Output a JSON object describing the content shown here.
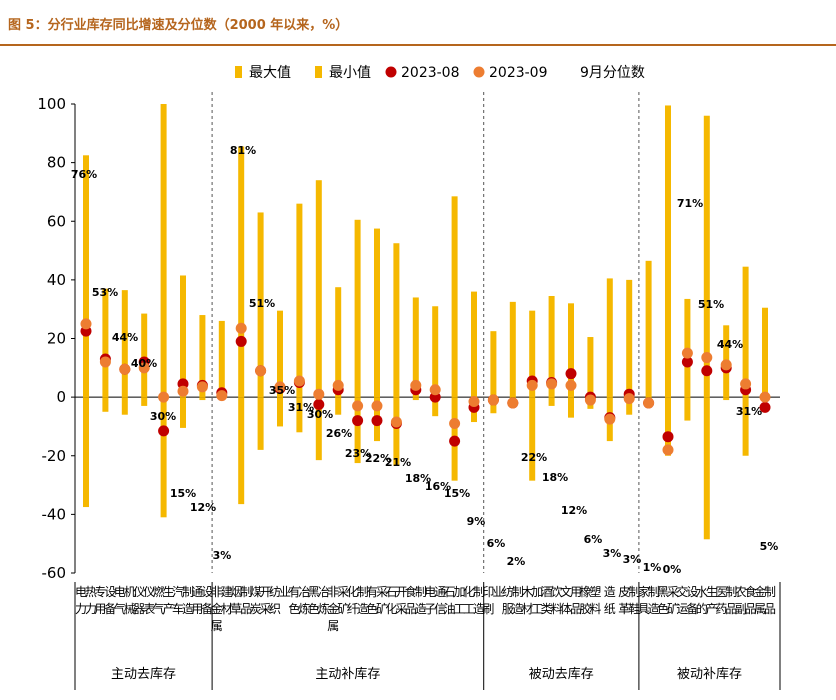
{
  "figure_title": "图 5：分行业库存同比增速及分位数（2000 年以来，%）",
  "chart_data": {
    "type": "bar",
    "title": "图 5：分行业库存同比增速及分位数（2000 年以来，%）",
    "xlabel": "",
    "ylabel": "",
    "ylim": [
      -60,
      100
    ],
    "yticks": [
      -60,
      -40,
      -20,
      0,
      20,
      40,
      60,
      80,
      100
    ],
    "legend_position": "top",
    "legend": [
      {
        "key": "max",
        "label": "最大值",
        "marker": "bar",
        "color": "#F5B800"
      },
      {
        "key": "min",
        "label": "最小值",
        "marker": "bar",
        "color": "#F5B800"
      },
      {
        "key": "v2308",
        "label": "2023-08",
        "marker": "dot",
        "color": "#C00000"
      },
      {
        "key": "v2309",
        "label": "2023-09",
        "marker": "dot",
        "color": "#ED7D31"
      },
      {
        "key": "pct",
        "label": "9月分位数",
        "marker": "none",
        "color": "#000000"
      }
    ],
    "groups": [
      {
        "label": "主动去库存",
        "start": 0,
        "end": 6
      },
      {
        "label": "主动补库存",
        "start": 7,
        "end": 20
      },
      {
        "label": "被动去库存",
        "start": 21,
        "end": 28
      },
      {
        "label": "被动补库存",
        "start": 29,
        "end": 33
      }
    ],
    "categories": [
      "电力热力",
      "专用设备",
      "电气机械",
      "仪器仪表",
      "燃气生产",
      "汽车制造",
      "通用设备",
      "非金属建材",
      "烟草制品",
      "煤炭开采",
      "纺织业",
      "有色冶炼",
      "黑色冶炼",
      "非金属采矿",
      "化纤制造",
      "有色采矿",
      "石化开采",
      "食品制造",
      "电子通信",
      "石油加工",
      "化工制造",
      "印刷业",
      "纺服制造",
      "木材加工",
      "酒类饮料",
      "文体用品",
      "橡胶塑料",
      "造纸",
      "皮革制鞋",
      "家具制造",
      "黑色采矿",
      "交运设备",
      "水的生产",
      "医药制品",
      "农副食品",
      "金属制品"
    ],
    "series": [
      {
        "name": "最大值",
        "values": [
          82.5,
          37,
          36.5,
          28.5,
          100,
          41.5,
          28,
          26,
          85.5,
          63,
          29.5,
          66,
          74,
          37.5,
          60.5,
          57.5,
          52.5,
          34,
          31,
          68.5,
          36,
          22.5,
          32.5,
          29.5,
          34.5,
          32,
          20.5,
          40.5,
          40,
          46.5,
          99.5,
          33.5,
          96,
          24.5,
          44.5,
          30.5
        ]
      },
      {
        "name": "最小值",
        "values": [
          -37.5,
          -5,
          -6,
          -3,
          -41,
          -10.5,
          -1,
          0,
          -36.5,
          -18,
          -10,
          -12,
          -21.5,
          -6,
          -22.5,
          -15,
          -23.5,
          -1,
          -6.5,
          -28.5,
          -8.5,
          -5.5,
          -2,
          -28.5,
          -3,
          -7,
          -4,
          -15,
          -6,
          -3,
          -20,
          -8,
          -48.5,
          -1,
          -20,
          0
        ]
      },
      {
        "name": "2023-08",
        "values": [
          22.5,
          13,
          9.5,
          12,
          -11.5,
          4.5,
          4,
          1.5,
          19,
          9,
          3,
          5,
          -2.5,
          2.5,
          -8,
          -8,
          -9,
          2.5,
          0,
          -15,
          -3.5,
          -1,
          -2,
          5.5,
          5,
          8,
          0,
          -7,
          1,
          -2,
          -13.5,
          12,
          9,
          10,
          2.5,
          -3.5
        ]
      },
      {
        "name": "2023-09",
        "values": [
          25,
          12,
          9.5,
          10,
          0,
          2,
          3.5,
          0.5,
          23.5,
          9,
          3.5,
          5.5,
          1,
          4,
          -3,
          -3,
          -8.5,
          4,
          2.5,
          -9,
          -1.5,
          -1,
          -2,
          4,
          4.5,
          4,
          -1,
          -7.5,
          -0.5,
          -2,
          -18,
          15,
          13.5,
          11,
          4.5,
          0
        ]
      },
      {
        "name": "9月分位数",
        "values": [
          76,
          53,
          44,
          40,
          30,
          15,
          12,
          3,
          81,
          51,
          35,
          31,
          30,
          26,
          23,
          22,
          21,
          18,
          16,
          15,
          9,
          6,
          2,
          22,
          18,
          12,
          6,
          3,
          3,
          1,
          0,
          71,
          51,
          44,
          31,
          5
        ]
      }
    ],
    "percentile_labels": [
      "76%",
      "53%",
      "44%",
      "40%",
      "30%",
      "15%",
      "12%",
      "3%",
      "81%",
      "51%",
      "35%",
      "31%",
      "30%",
      "26%",
      "23%",
      "22%",
      "21%",
      "18%",
      "16%",
      "15%",
      "9%",
      "6%",
      "2%",
      "22%",
      "18%",
      "12%",
      "6%",
      "3%",
      "3%",
      "1%",
      "0%",
      "71%",
      "51%",
      "44%",
      "31%",
      "5%"
    ]
  }
}
